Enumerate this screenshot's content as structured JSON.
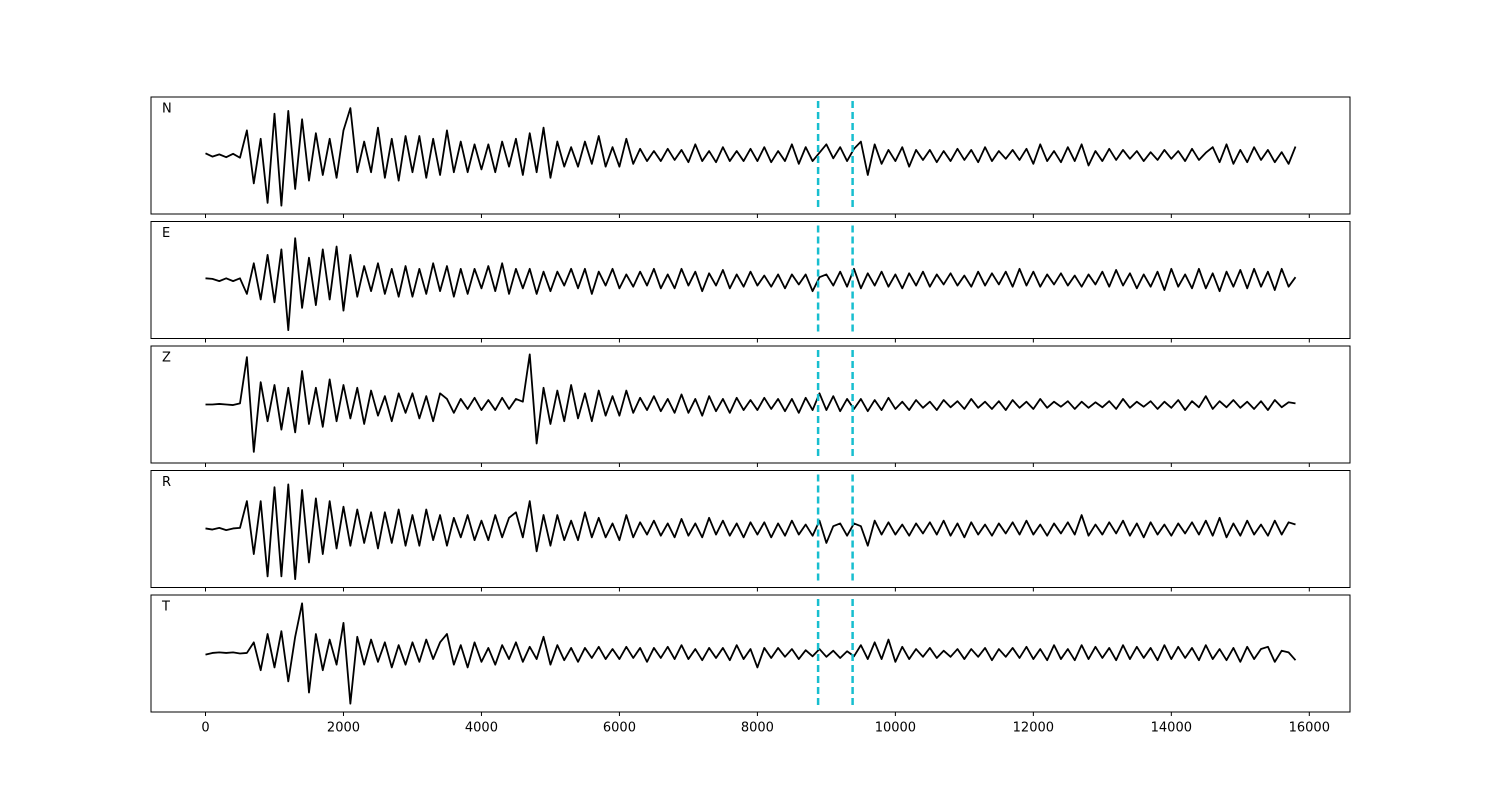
{
  "chart_data": {
    "type": "line",
    "stacked_panels": true,
    "x": [
      0,
      100,
      200,
      300,
      400,
      500,
      600,
      700,
      800,
      900,
      1000,
      1100,
      1200,
      1300,
      1400,
      1500,
      1600,
      1700,
      1800,
      1900,
      2000,
      2100,
      2200,
      2300,
      2400,
      2500,
      2600,
      2700,
      2800,
      2900,
      3000,
      3100,
      3200,
      3300,
      3400,
      3500,
      3600,
      3700,
      3800,
      3900,
      4000,
      4100,
      4200,
      4300,
      4400,
      4500,
      4600,
      4700,
      4800,
      4900,
      5000,
      5100,
      5200,
      5300,
      5400,
      5500,
      5600,
      5700,
      5800,
      5900,
      6000,
      6100,
      6200,
      6300,
      6400,
      6500,
      6600,
      6700,
      6800,
      6900,
      7000,
      7100,
      7200,
      7300,
      7400,
      7500,
      7600,
      7700,
      7800,
      7900,
      8000,
      8100,
      8200,
      8300,
      8400,
      8500,
      8600,
      8700,
      8800,
      8900,
      9000,
      9100,
      9200,
      9300,
      9400,
      9500,
      9600,
      9700,
      9800,
      9900,
      10000,
      10100,
      10200,
      10300,
      10400,
      10500,
      10600,
      10700,
      10800,
      10900,
      11000,
      11100,
      11200,
      11300,
      11400,
      11500,
      11600,
      11700,
      11800,
      11900,
      12000,
      12100,
      12200,
      12300,
      12400,
      12500,
      12600,
      12700,
      12800,
      12900,
      13000,
      13100,
      13200,
      13300,
      13400,
      13500,
      13600,
      13700,
      13800,
      13900,
      14000,
      14100,
      14200,
      14300,
      14400,
      14500,
      14600,
      14700,
      14800,
      14900,
      15000,
      15100,
      15200,
      15300,
      15400,
      15500,
      15600,
      15700,
      15800
    ],
    "series": [
      {
        "name": "N",
        "color": "#000000",
        "values": [
          0.04,
          -0.02,
          0.02,
          -0.03,
          0.03,
          -0.04,
          0.45,
          -0.5,
          0.3,
          -0.85,
          0.75,
          -0.9,
          0.8,
          -0.6,
          0.65,
          -0.45,
          0.4,
          -0.35,
          0.3,
          -0.4,
          0.45,
          0.85,
          -0.3,
          0.25,
          -0.3,
          0.5,
          -0.4,
          0.3,
          -0.45,
          0.35,
          -0.3,
          0.35,
          -0.4,
          0.3,
          -0.35,
          0.45,
          -0.3,
          0.25,
          -0.3,
          0.2,
          -0.25,
          0.2,
          -0.3,
          0.25,
          -0.2,
          0.3,
          -0.35,
          0.4,
          -0.3,
          0.5,
          -0.4,
          0.25,
          -0.2,
          0.15,
          -0.2,
          0.25,
          -0.15,
          0.35,
          -0.2,
          0.15,
          -0.2,
          0.3,
          -0.15,
          0.12,
          -0.1,
          0.08,
          -0.1,
          0.12,
          -0.08,
          0.1,
          -0.12,
          0.2,
          -0.1,
          0.08,
          -0.12,
          0.15,
          -0.1,
          0.08,
          -0.1,
          0.12,
          -0.1,
          0.15,
          -0.12,
          0.08,
          -0.1,
          0.2,
          -0.15,
          0.15,
          -0.1,
          0.05,
          0.2,
          -0.05,
          0.15,
          -0.1,
          0.12,
          0.25,
          -0.35,
          0.2,
          -0.15,
          0.1,
          -0.1,
          0.15,
          -0.2,
          0.1,
          -0.08,
          0.1,
          -0.12,
          0.08,
          -0.1,
          0.12,
          -0.08,
          0.1,
          -0.12,
          0.15,
          -0.1,
          0.08,
          -0.06,
          0.1,
          -0.08,
          0.12,
          -0.15,
          0.2,
          -0.1,
          0.08,
          -0.12,
          0.15,
          -0.1,
          0.2,
          -0.18,
          0.08,
          -0.1,
          0.12,
          -0.08,
          0.1,
          -0.06,
          0.08,
          -0.1,
          0.06,
          -0.08,
          0.1,
          -0.06,
          0.08,
          -0.1,
          0.12,
          -0.08,
          0.05,
          0.15,
          -0.12,
          0.2,
          -0.15,
          0.1,
          -0.12,
          0.15,
          -0.08,
          0.1,
          -0.12,
          0.06,
          -0.15,
          0.16
        ]
      },
      {
        "name": "E",
        "color": "#000000",
        "values": [
          0.03,
          0.02,
          -0.02,
          0.03,
          -0.02,
          0.03,
          -0.25,
          0.3,
          -0.35,
          0.45,
          -0.4,
          0.55,
          -0.9,
          0.75,
          -0.5,
          0.4,
          -0.45,
          0.55,
          -0.35,
          0.6,
          -0.55,
          0.45,
          -0.3,
          0.25,
          -0.2,
          0.3,
          -0.25,
          0.2,
          -0.3,
          0.25,
          -0.3,
          0.2,
          -0.25,
          0.3,
          -0.2,
          0.25,
          -0.3,
          0.2,
          -0.25,
          0.2,
          -0.15,
          0.25,
          -0.2,
          0.3,
          -0.25,
          0.2,
          -0.15,
          0.2,
          -0.25,
          0.15,
          -0.2,
          0.15,
          -0.1,
          0.2,
          -0.15,
          0.2,
          -0.25,
          0.15,
          -0.1,
          0.2,
          -0.15,
          0.1,
          -0.12,
          0.15,
          -0.1,
          0.2,
          -0.15,
          0.1,
          -0.15,
          0.2,
          -0.1,
          0.15,
          -0.2,
          0.12,
          -0.1,
          0.18,
          -0.15,
          0.1,
          -0.12,
          0.15,
          -0.1,
          0.08,
          -0.12,
          0.1,
          -0.15,
          0.1,
          -0.08,
          0.1,
          -0.2,
          0.05,
          0.1,
          -0.1,
          0.15,
          -0.12,
          0.2,
          -0.15,
          0.12,
          -0.1,
          0.15,
          -0.12,
          0.1,
          -0.15,
          0.12,
          -0.1,
          0.15,
          -0.12,
          0.1,
          -0.08,
          0.12,
          -0.1,
          0.08,
          -0.12,
          0.15,
          -0.1,
          0.12,
          -0.08,
          0.15,
          -0.12,
          0.2,
          -0.1,
          0.15,
          -0.12,
          0.1,
          -0.08,
          0.12,
          -0.1,
          0.08,
          -0.12,
          0.1,
          -0.08,
          0.15,
          -0.12,
          0.18,
          -0.1,
          0.12,
          -0.15,
          0.1,
          -0.12,
          0.15,
          -0.18,
          0.2,
          -0.12,
          0.1,
          -0.15,
          0.2,
          -0.15,
          0.12,
          -0.2,
          0.15,
          -0.12,
          0.18,
          -0.15,
          0.2,
          -0.12,
          0.15,
          -0.18,
          0.2,
          -0.12,
          0.05
        ]
      },
      {
        "name": "Z",
        "color": "#000000",
        "values": [
          0.0,
          0.0,
          0.01,
          0.0,
          -0.01,
          0.02,
          0.85,
          -0.85,
          0.4,
          -0.3,
          0.35,
          -0.45,
          0.3,
          -0.5,
          0.6,
          -0.35,
          0.3,
          -0.4,
          0.45,
          -0.3,
          0.35,
          -0.25,
          0.3,
          -0.35,
          0.25,
          -0.2,
          0.15,
          -0.3,
          0.2,
          -0.15,
          0.2,
          -0.25,
          0.15,
          -0.3,
          0.2,
          0.1,
          -0.15,
          0.1,
          -0.08,
          0.12,
          -0.1,
          0.08,
          -0.1,
          0.12,
          -0.08,
          0.1,
          0.05,
          0.9,
          -0.7,
          0.3,
          -0.35,
          0.25,
          -0.3,
          0.35,
          -0.25,
          0.2,
          -0.3,
          0.25,
          -0.2,
          0.15,
          -0.2,
          0.25,
          -0.15,
          0.12,
          -0.1,
          0.15,
          -0.12,
          0.1,
          -0.15,
          0.18,
          -0.15,
          0.1,
          -0.2,
          0.15,
          -0.12,
          0.1,
          -0.15,
          0.12,
          -0.1,
          0.08,
          -0.1,
          0.12,
          -0.08,
          0.1,
          -0.12,
          0.1,
          -0.15,
          0.12,
          -0.1,
          0.2,
          -0.1,
          0.15,
          -0.12,
          0.1,
          -0.08,
          0.1,
          -0.12,
          0.08,
          -0.1,
          0.12,
          -0.08,
          0.05,
          -0.1,
          0.08,
          -0.06,
          0.05,
          -0.1,
          0.08,
          -0.05,
          0.06,
          -0.08,
          0.1,
          -0.06,
          0.05,
          -0.08,
          0.06,
          -0.1,
          0.08,
          -0.06,
          0.05,
          -0.08,
          0.1,
          -0.06,
          0.05,
          -0.04,
          0.06,
          -0.08,
          0.05,
          -0.06,
          0.04,
          -0.05,
          0.06,
          -0.08,
          0.1,
          -0.06,
          0.05,
          -0.04,
          0.06,
          -0.08,
          0.05,
          -0.06,
          0.08,
          -0.1,
          0.06,
          -0.05,
          0.15,
          -0.08,
          0.06,
          -0.05,
          0.08,
          -0.06,
          0.05,
          -0.08,
          0.06,
          -0.1,
          0.08,
          -0.05,
          0.04,
          0.02
        ]
      },
      {
        "name": "R",
        "color": "#000000",
        "values": [
          0.01,
          -0.01,
          0.02,
          -0.02,
          0.01,
          0.02,
          0.5,
          -0.45,
          0.5,
          -0.85,
          0.75,
          -0.85,
          0.8,
          -0.9,
          0.7,
          -0.6,
          0.55,
          -0.45,
          0.5,
          -0.35,
          0.4,
          -0.3,
          0.35,
          -0.25,
          0.3,
          -0.35,
          0.3,
          -0.25,
          0.35,
          -0.3,
          0.25,
          -0.3,
          0.35,
          -0.2,
          0.25,
          -0.3,
          0.2,
          -0.15,
          0.25,
          -0.2,
          0.15,
          -0.2,
          0.25,
          -0.15,
          0.2,
          0.3,
          -0.15,
          0.5,
          -0.4,
          0.25,
          -0.3,
          0.25,
          -0.2,
          0.15,
          -0.2,
          0.3,
          -0.15,
          0.2,
          -0.15,
          0.1,
          -0.2,
          0.25,
          -0.15,
          0.12,
          -0.1,
          0.15,
          -0.12,
          0.1,
          -0.15,
          0.18,
          -0.12,
          0.1,
          -0.15,
          0.2,
          -0.1,
          0.15,
          -0.12,
          0.1,
          -0.15,
          0.12,
          -0.1,
          0.12,
          -0.15,
          0.1,
          -0.12,
          0.15,
          -0.1,
          0.08,
          -0.12,
          0.15,
          -0.25,
          0.05,
          0.1,
          -0.12,
          0.1,
          0.05,
          -0.3,
          0.15,
          -0.1,
          0.12,
          -0.1,
          0.08,
          -0.12,
          0.1,
          -0.08,
          0.12,
          -0.1,
          0.15,
          -0.12,
          0.1,
          -0.15,
          0.12,
          -0.1,
          0.08,
          -0.12,
          0.1,
          -0.08,
          0.12,
          -0.1,
          0.15,
          -0.1,
          0.08,
          -0.12,
          0.1,
          -0.08,
          0.12,
          -0.1,
          0.25,
          -0.12,
          0.08,
          -0.1,
          0.12,
          -0.08,
          0.15,
          -0.12,
          0.1,
          -0.15,
          0.12,
          -0.1,
          0.08,
          -0.12,
          0.1,
          -0.08,
          0.12,
          -0.1,
          0.15,
          -0.12,
          0.2,
          -0.15,
          0.1,
          -0.12,
          0.15,
          -0.1,
          0.08,
          -0.12,
          0.15,
          -0.1,
          0.12,
          0.08
        ]
      },
      {
        "name": "T",
        "color": "#000000",
        "values": [
          -0.02,
          0.01,
          0.02,
          0.01,
          0.02,
          0.0,
          0.01,
          0.2,
          -0.3,
          0.35,
          -0.25,
          0.4,
          -0.5,
          0.3,
          0.9,
          -0.7,
          0.35,
          -0.3,
          0.25,
          -0.2,
          0.55,
          -0.9,
          0.3,
          -0.2,
          0.25,
          -0.15,
          0.2,
          -0.25,
          0.15,
          -0.2,
          0.2,
          -0.15,
          0.25,
          -0.1,
          0.2,
          0.35,
          -0.2,
          0.15,
          -0.25,
          0.2,
          -0.15,
          0.1,
          -0.2,
          0.15,
          -0.1,
          0.2,
          -0.15,
          0.12,
          -0.1,
          0.3,
          -0.2,
          0.15,
          -0.12,
          0.1,
          -0.15,
          0.1,
          -0.08,
          0.12,
          -0.1,
          0.08,
          -0.1,
          0.12,
          -0.08,
          0.1,
          -0.15,
          0.1,
          -0.08,
          0.12,
          -0.1,
          0.15,
          -0.1,
          0.08,
          -0.12,
          0.1,
          -0.08,
          0.1,
          -0.12,
          0.15,
          -0.1,
          0.08,
          -0.25,
          0.1,
          -0.08,
          0.1,
          -0.06,
          0.08,
          -0.1,
          0.06,
          -0.05,
          0.08,
          -0.06,
          0.05,
          -0.08,
          0.04,
          -0.05,
          0.15,
          -0.1,
          0.2,
          -0.1,
          0.25,
          -0.15,
          0.12,
          -0.1,
          0.08,
          -0.06,
          0.1,
          -0.08,
          0.05,
          -0.06,
          0.08,
          -0.1,
          0.08,
          -0.06,
          0.1,
          -0.12,
          0.08,
          -0.06,
          0.1,
          -0.08,
          0.12,
          -0.1,
          0.08,
          -0.12,
          0.15,
          -0.1,
          0.08,
          -0.12,
          0.15,
          -0.1,
          0.12,
          -0.08,
          0.1,
          -0.12,
          0.15,
          -0.1,
          0.12,
          -0.08,
          0.1,
          -0.12,
          0.15,
          -0.1,
          0.12,
          -0.08,
          0.1,
          -0.12,
          0.15,
          -0.1,
          0.08,
          -0.12,
          0.1,
          -0.15,
          0.12,
          -0.1,
          0.08,
          0.12,
          -0.15,
          0.05,
          0.02,
          -0.12
        ]
      }
    ],
    "markers": [
      8880,
      9380
    ],
    "marker_color": "#17becf",
    "xlim": [
      -790,
      16590
    ],
    "xticks": [
      0,
      2000,
      4000,
      6000,
      8000,
      10000,
      12000,
      14000,
      16000
    ],
    "ylim": [
      -1.05,
      1.05
    ]
  }
}
